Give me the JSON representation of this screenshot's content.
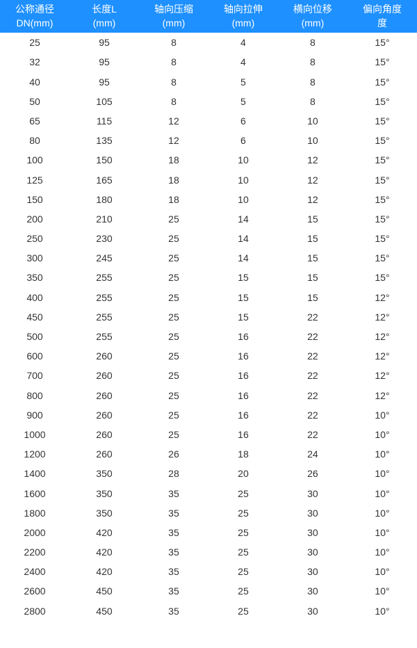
{
  "table": {
    "header_bg": "#1e90ff",
    "header_color": "#ffffff",
    "cell_color": "#333333",
    "font_size": 14,
    "columns": [
      {
        "line1": "公称通径",
        "line2": "DN(mm)"
      },
      {
        "line1": "长度L",
        "line2": "(mm)"
      },
      {
        "line1": "轴向压缩",
        "line2": "(mm)"
      },
      {
        "line1": "轴向拉伸",
        "line2": "(mm)"
      },
      {
        "line1": "横向位移",
        "line2": "(mm)"
      },
      {
        "line1": "偏向角度",
        "line2": "度"
      }
    ],
    "rows": [
      [
        "25",
        "95",
        "8",
        "4",
        "8",
        "15°"
      ],
      [
        "32",
        "95",
        "8",
        "4",
        "8",
        "15°"
      ],
      [
        "40",
        "95",
        "8",
        "5",
        "8",
        "15°"
      ],
      [
        "50",
        "105",
        "8",
        "5",
        "8",
        "15°"
      ],
      [
        "65",
        "115",
        "12",
        "6",
        "10",
        "15°"
      ],
      [
        "80",
        "135",
        "12",
        "6",
        "10",
        "15°"
      ],
      [
        "100",
        "150",
        "18",
        "10",
        "12",
        "15°"
      ],
      [
        "125",
        "165",
        "18",
        "10",
        "12",
        "15°"
      ],
      [
        "150",
        "180",
        "18",
        "10",
        "12",
        "15°"
      ],
      [
        "200",
        "210",
        "25",
        "14",
        "15",
        "15°"
      ],
      [
        "250",
        "230",
        "25",
        "14",
        "15",
        "15°"
      ],
      [
        "300",
        "245",
        "25",
        "14",
        "15",
        "15°"
      ],
      [
        "350",
        "255",
        "25",
        "15",
        "15",
        "15°"
      ],
      [
        "400",
        "255",
        "25",
        "15",
        "15",
        "12°"
      ],
      [
        "450",
        "255",
        "25",
        "15",
        "22",
        "12°"
      ],
      [
        "500",
        "255",
        "25",
        "16",
        "22",
        "12°"
      ],
      [
        "600",
        "260",
        "25",
        "16",
        "22",
        "12°"
      ],
      [
        "700",
        "260",
        "25",
        "16",
        "22",
        "12°"
      ],
      [
        "800",
        "260",
        "25",
        "16",
        "22",
        "12°"
      ],
      [
        "900",
        "260",
        "25",
        "16",
        "22",
        "10°"
      ],
      [
        "1000",
        "260",
        "25",
        "16",
        "22",
        "10°"
      ],
      [
        "1200",
        "260",
        "26",
        "18",
        "24",
        "10°"
      ],
      [
        "1400",
        "350",
        "28",
        "20",
        "26",
        "10°"
      ],
      [
        "1600",
        "350",
        "35",
        "25",
        "30",
        "10°"
      ],
      [
        "1800",
        "350",
        "35",
        "25",
        "30",
        "10°"
      ],
      [
        "2000",
        "420",
        "35",
        "25",
        "30",
        "10°"
      ],
      [
        "2200",
        "420",
        "35",
        "25",
        "30",
        "10°"
      ],
      [
        "2400",
        "420",
        "35",
        "25",
        "30",
        "10°"
      ],
      [
        "2600",
        "450",
        "35",
        "25",
        "30",
        "10°"
      ],
      [
        "2800",
        "450",
        "35",
        "25",
        "30",
        "10°"
      ]
    ]
  }
}
